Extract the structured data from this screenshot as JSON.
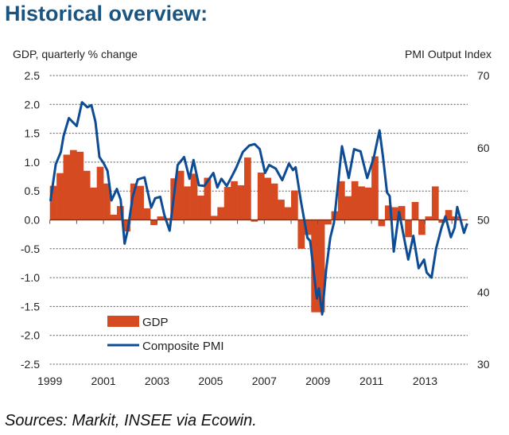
{
  "title": "Historical overview:",
  "source": "Sources: Markit, INSEE via Ecowin.",
  "colors": {
    "gdp": "#d64a22",
    "pmi": "#0d4c94",
    "title": "#1a5480"
  },
  "chart_data": {
    "type": "bar+line",
    "ylabel_left": "GDP, quarterly % change",
    "ylabel_right": "PMI Output  Index",
    "ylim_left": [
      -2.5,
      2.5
    ],
    "ylim_right": [
      30,
      70
    ],
    "yticks_left": [
      "2.5",
      "2.0",
      "1.5",
      "1.0",
      "0.5",
      "0.0",
      "-0.5",
      "-1.0",
      "-1.5",
      "-2.0",
      "-2.5"
    ],
    "yticks_right": [
      "70",
      "60",
      "50",
      "40",
      "30"
    ],
    "xticks": [
      "1999",
      "2001",
      "2003",
      "2005",
      "2007",
      "2009",
      "2011",
      "2013"
    ],
    "grid": true,
    "legend_position": "bottom-left",
    "series": [
      {
        "name": "GDP",
        "type": "bar",
        "categories": [
          "1999Q1",
          "1999Q2",
          "1999Q3",
          "1999Q4",
          "2000Q1",
          "2000Q2",
          "2000Q3",
          "2000Q4",
          "2001Q1",
          "2001Q2",
          "2001Q3",
          "2001Q4",
          "2002Q1",
          "2002Q2",
          "2002Q3",
          "2002Q4",
          "2003Q1",
          "2003Q2",
          "2003Q3",
          "2003Q4",
          "2004Q1",
          "2004Q2",
          "2004Q3",
          "2004Q4",
          "2005Q1",
          "2005Q2",
          "2005Q3",
          "2005Q4",
          "2006Q1",
          "2006Q2",
          "2006Q3",
          "2006Q4",
          "2007Q1",
          "2007Q2",
          "2007Q3",
          "2007Q4",
          "2008Q1",
          "2008Q2",
          "2008Q3",
          "2008Q4",
          "2009Q1",
          "2009Q2",
          "2009Q3",
          "2009Q4",
          "2010Q1",
          "2010Q2",
          "2010Q3",
          "2010Q4",
          "2011Q1",
          "2011Q2",
          "2011Q3",
          "2011Q4",
          "2012Q1",
          "2012Q2",
          "2012Q3",
          "2012Q4",
          "2013Q1",
          "2013Q2",
          "2013Q3",
          "2013Q4",
          "2014Q1"
        ],
        "values": [
          0.59,
          0.81,
          1.13,
          1.21,
          1.18,
          0.85,
          0.56,
          0.92,
          0.63,
          0.09,
          0.24,
          -0.2,
          0.63,
          0.59,
          0.2,
          -0.09,
          0.06,
          0.03,
          0.72,
          0.85,
          0.58,
          0.8,
          0.42,
          0.73,
          0.07,
          0.22,
          0.57,
          0.67,
          0.6,
          1.08,
          -0.03,
          0.82,
          0.73,
          0.63,
          0.35,
          0.22,
          0.51,
          -0.5,
          -0.26,
          -1.6,
          -1.6,
          -0.08,
          0.15,
          0.67,
          0.41,
          0.67,
          0.58,
          0.56,
          1.1,
          -0.11,
          0.25,
          0.22,
          0.24,
          -0.3,
          0.31,
          -0.26,
          0.06,
          0.58,
          -0.05,
          0.17,
          0.06
        ]
      },
      {
        "name": "Composite PMI",
        "type": "line",
        "axis": "right",
        "x": [
          1999.02,
          1999.22,
          1999.41,
          1999.51,
          1999.71,
          2000.0,
          2000.2,
          2000.4,
          2000.55,
          2000.7,
          2000.85,
          2001.0,
          2001.15,
          2001.3,
          2001.5,
          2001.64,
          2001.79,
          2001.9,
          2002.09,
          2002.28,
          2002.53,
          2002.78,
          2002.93,
          2003.12,
          2003.27,
          2003.47,
          2003.77,
          2004.01,
          2004.21,
          2004.36,
          2004.56,
          2004.76,
          2005.1,
          2005.25,
          2005.4,
          2005.6,
          2005.8,
          2005.95,
          2006.2,
          2006.44,
          2006.64,
          2006.83,
          2007.03,
          2007.18,
          2007.43,
          2007.67,
          2007.92,
          2008.07,
          2008.17,
          2008.37,
          2008.61,
          2008.71,
          2008.96,
          2009.04,
          2009.16,
          2009.31,
          2009.46,
          2009.6,
          2009.9,
          2010.15,
          2010.35,
          2010.59,
          2010.84,
          2011.09,
          2011.3,
          2011.43,
          2011.58,
          2011.68,
          2011.83,
          2012.03,
          2012.37,
          2012.56,
          2012.76,
          2012.96,
          2013.06,
          2013.24,
          2013.41,
          2013.61,
          2013.76,
          2013.96,
          2014.1,
          2014.2,
          2014.45,
          2014.57
        ],
        "values": [
          52.6,
          57.7,
          59.4,
          61.6,
          64.1,
          63.0,
          66.3,
          65.6,
          65.9,
          63.6,
          58.7,
          57.9,
          56.8,
          52.7,
          54.3,
          52.8,
          46.7,
          48.5,
          53.2,
          55.6,
          55.9,
          51.7,
          53.0,
          53.2,
          50.7,
          48.5,
          57.6,
          58.7,
          55.7,
          58.3,
          54.8,
          54.7,
          56.5,
          54.5,
          55.7,
          54.7,
          56.1,
          57.2,
          59.4,
          60.3,
          60.5,
          59.8,
          56.5,
          57.6,
          57.1,
          55.5,
          57.8,
          56.9,
          57.3,
          52.5,
          47.5,
          47.1,
          39.1,
          40.5,
          36.9,
          43.1,
          47.5,
          49.6,
          60.2,
          55.8,
          59.8,
          59.5,
          55.8,
          58.7,
          62.4,
          58.7,
          53.8,
          53.3,
          45.6,
          51.1,
          44.5,
          47.8,
          43.3,
          44.5,
          42.7,
          42.0,
          46.0,
          48.9,
          50.5,
          47.6,
          48.9,
          51.8,
          48.2,
          49.5
        ]
      }
    ]
  }
}
